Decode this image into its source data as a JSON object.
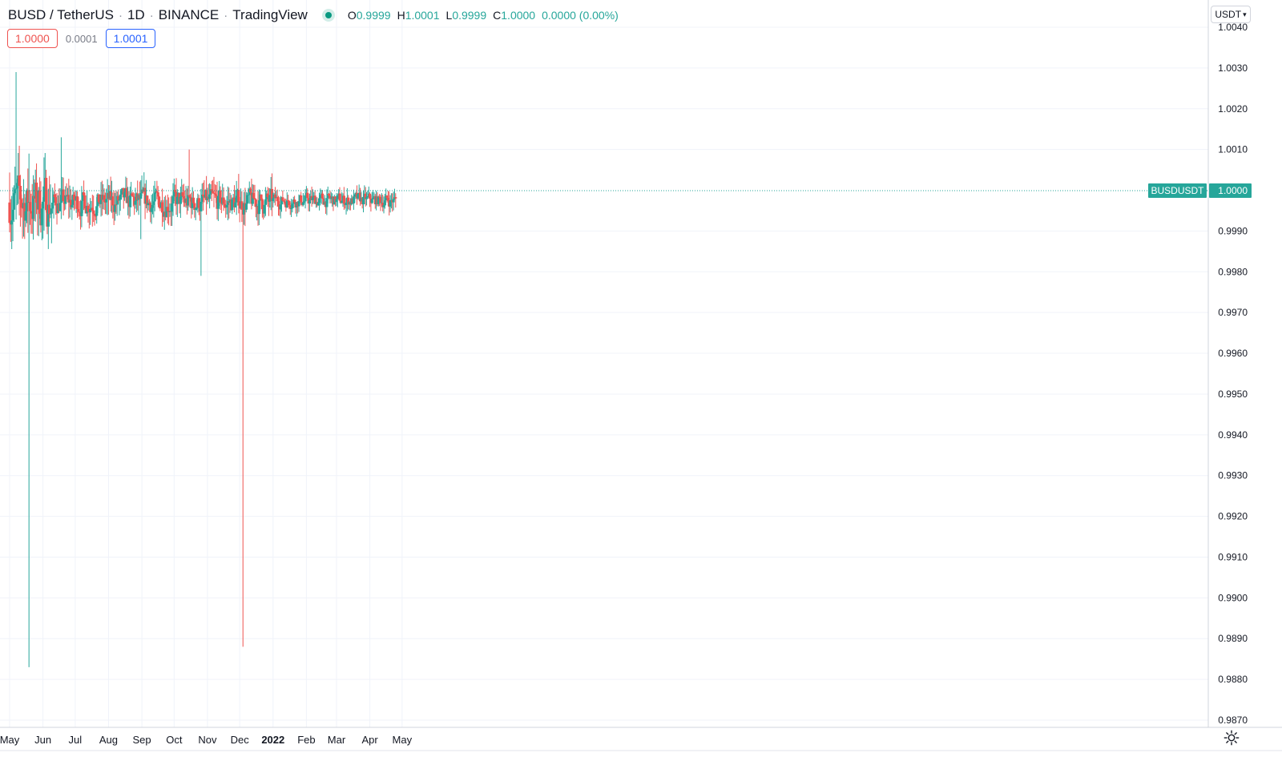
{
  "header": {
    "title": "BUSD / TetherUS",
    "interval": "1D",
    "exchange": "BINANCE",
    "provider": "TradingView",
    "ohlc": {
      "o_label": "O",
      "o": "0.9999",
      "h_label": "H",
      "h": "1.0001",
      "l_label": "L",
      "l": "0.9999",
      "c_label": "C",
      "c": "1.0000"
    },
    "change": "0.0000 (0.00%)"
  },
  "quotes": {
    "sell": "1.0000",
    "spread": "0.0001",
    "buy": "1.0001"
  },
  "currency_selector": "USDT",
  "settings_icon": "gear-icon",
  "colors": {
    "up": "#26a69a",
    "down": "#ef5350",
    "grid": "#f0f3fa",
    "price_tag": "#26a69a"
  },
  "chart_data": {
    "type": "candlestick",
    "symbol": "BUSDUSDT",
    "interval": "1D",
    "ylim": [
      0.9868,
      1.0042
    ],
    "y_ticks": [
      "1.0040",
      "1.0030",
      "1.0020",
      "1.0010",
      "0.9990",
      "0.9980",
      "0.9970",
      "0.9960",
      "0.9950",
      "0.9940",
      "0.9930",
      "0.9920",
      "0.9910",
      "0.9900",
      "0.9890",
      "0.9880",
      "0.9870"
    ],
    "x_ticks": [
      "May",
      "Jun",
      "Jul",
      "Aug",
      "Sep",
      "Oct",
      "Nov",
      "Dec",
      "2022",
      "Feb",
      "Mar",
      "Apr",
      "May"
    ],
    "date_range": [
      "2021-05-01",
      "2022-04-25"
    ],
    "last_price": "1.0000",
    "last_price_label": "BUSDUSDT",
    "baseline": 0.9997,
    "notable_wicks": [
      {
        "date": "2021-05-07",
        "high": 1.0029
      },
      {
        "date": "2021-05-19",
        "high": 1.0009,
        "low": 0.9883
      },
      {
        "date": "2021-06-18",
        "high": 1.0013
      },
      {
        "date": "2021-08-31",
        "low": 0.9988
      },
      {
        "date": "2021-10-15",
        "high": 1.001
      },
      {
        "date": "2021-10-26",
        "low": 0.9979
      },
      {
        "date": "2021-12-04",
        "low": 0.9888
      }
    ],
    "grid": true,
    "legend": "none"
  }
}
